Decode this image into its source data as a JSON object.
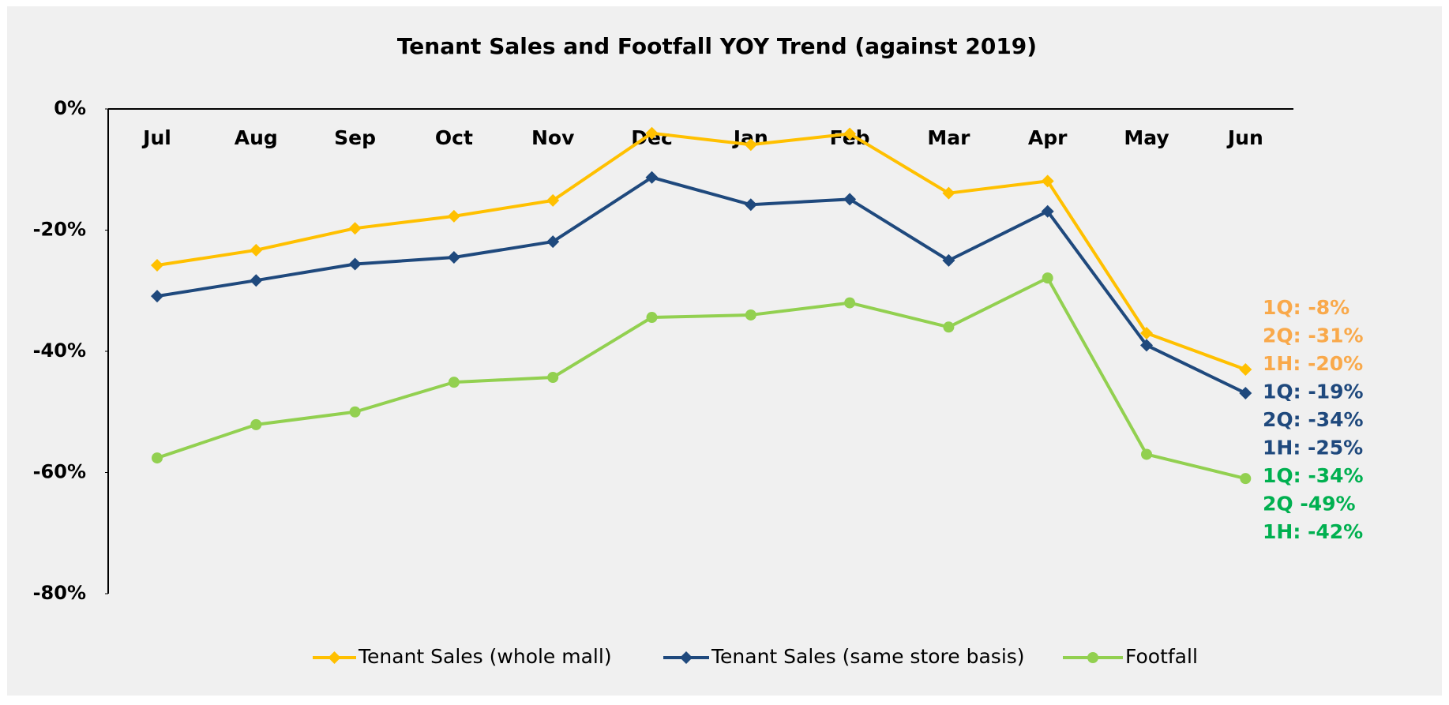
{
  "chart_data": {
    "type": "line",
    "title": "Tenant Sales and Footfall YOY Trend (against 2019)",
    "categories": [
      "Jul",
      "Aug",
      "Sep",
      "Oct",
      "Nov",
      "Dec",
      "Jan",
      "Feb",
      "Mar",
      "Apr",
      "May",
      "Jun"
    ],
    "series": [
      {
        "name": "Tenant Sales (whole mall)",
        "color": "#ffc000",
        "marker": "diamond",
        "values": [
          -25.8,
          -23.3,
          -19.7,
          -17.7,
          -15.1,
          -4.0,
          -5.9,
          -4.1,
          -13.9,
          -11.9,
          -37.0,
          -43.0
        ]
      },
      {
        "name": "Tenant Sales (same store basis)",
        "color": "#1f497d",
        "marker": "diamond",
        "values": [
          -30.9,
          -28.3,
          -25.6,
          -24.5,
          -21.9,
          -11.3,
          -15.8,
          -14.9,
          -25.0,
          -16.9,
          -39.0,
          -46.9
        ]
      },
      {
        "name": "Footfall",
        "color": "#92d050",
        "marker": "circle",
        "values": [
          -57.6,
          -52.1,
          -50.0,
          -45.1,
          -44.3,
          -34.4,
          -34.0,
          -32.0,
          -36.0,
          -27.9,
          -57.0,
          -61.0
        ]
      }
    ],
    "ylim": [
      -80,
      0
    ],
    "yticks": [
      {
        "value": 0,
        "label": "0%"
      },
      {
        "value": -20,
        "label": "-20%"
      },
      {
        "value": -40,
        "label": "-40%"
      },
      {
        "value": -60,
        "label": "-60%"
      },
      {
        "value": -80,
        "label": "-80%"
      }
    ],
    "legend": "bottom",
    "annotations": [
      {
        "text": "1Q: -8%",
        "color": "#f9a94b"
      },
      {
        "text": "2Q: -31%",
        "color": "#f9a94b"
      },
      {
        "text": "1H: -20%",
        "color": "#f9a94b"
      },
      {
        "text": "1Q: -19%",
        "color": "#1f497d"
      },
      {
        "text": "2Q: -34%",
        "color": "#1f497d"
      },
      {
        "text": "1H: -25%",
        "color": "#1f497d"
      },
      {
        "text": "1Q: -34%",
        "color": "#00b050"
      },
      {
        "text": "2Q -49%",
        "color": "#00b050"
      },
      {
        "text": "1H: -42%",
        "color": "#00b050"
      }
    ]
  }
}
